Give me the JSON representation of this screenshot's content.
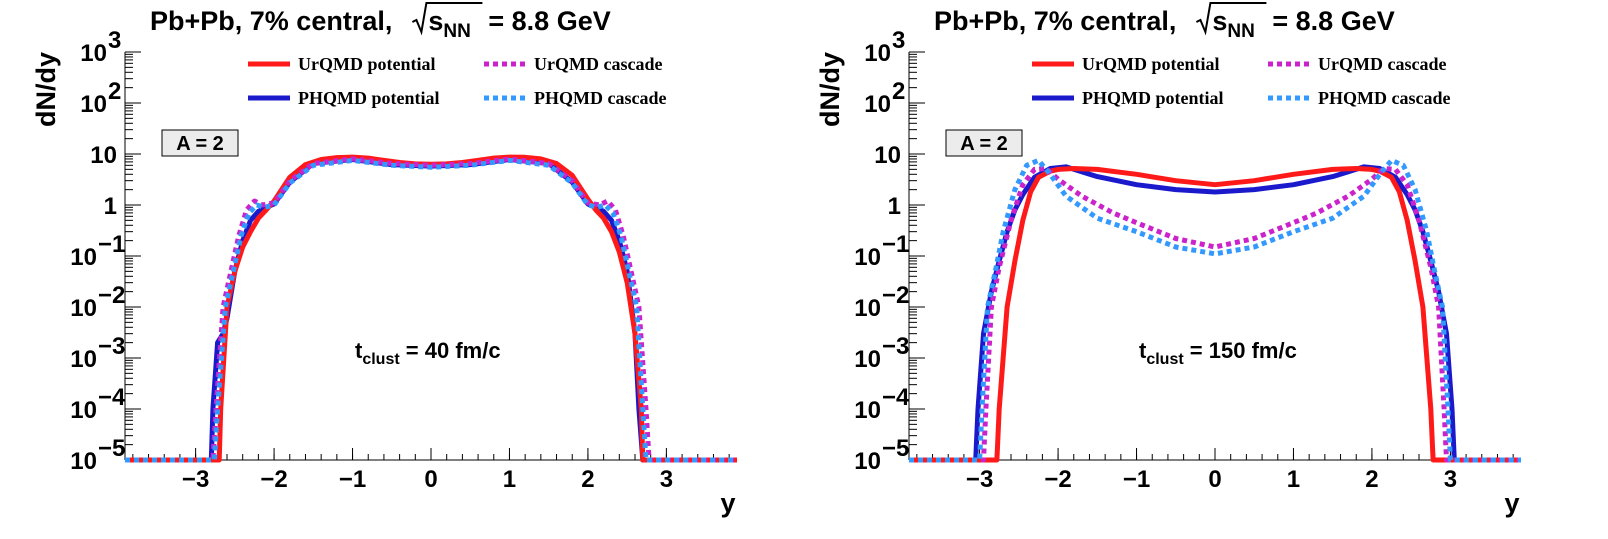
{
  "colors": {
    "urqmd_potential": "#ff1a1a",
    "urqmd_cascade": "#cc22cc",
    "phqmd_potential": "#1a1acc",
    "phqmd_cascade": "#3399ff"
  },
  "chart_data": [
    {
      "type": "line",
      "title": {
        "prefix": "Pb+Pb, 7% central,",
        "sqrt": "s",
        "sub": "NN",
        "suffix": "= 8.8 GeV"
      },
      "xlabel": "y",
      "ylabel": "dN/dy",
      "xlim": [
        -3.9,
        3.9
      ],
      "ylim": [
        1e-05,
        1000
      ],
      "yscale": "log",
      "xticks": [
        {
          "v": -3,
          "label": "−3"
        },
        {
          "v": -2,
          "label": "−2"
        },
        {
          "v": -1,
          "label": "−1"
        },
        {
          "v": 0,
          "label": "0"
        },
        {
          "v": 1,
          "label": "1"
        },
        {
          "v": 2,
          "label": "2"
        },
        {
          "v": 3,
          "label": "3"
        }
      ],
      "yticks": [
        {
          "v": 1000,
          "base": "10",
          "exp": "3"
        },
        {
          "v": 100,
          "base": "10",
          "exp": "2"
        },
        {
          "v": 10,
          "base": "10",
          "exp": ""
        },
        {
          "v": 1,
          "base": "1",
          "exp": ""
        },
        {
          "v": 0.1,
          "base": "10",
          "exp": "−1"
        },
        {
          "v": 0.01,
          "base": "10",
          "exp": "−2"
        },
        {
          "v": 0.001,
          "base": "10",
          "exp": "−3"
        },
        {
          "v": 0.0001,
          "base": "10",
          "exp": "−4"
        },
        {
          "v": 1e-05,
          "base": "10",
          "exp": "−5"
        }
      ],
      "box_label": "A = 2",
      "annotation": {
        "t": "t",
        "sub": "clust",
        "rest": " = 40 fm/c"
      },
      "series": [
        {
          "name": "UrQMD potential",
          "style": "solid",
          "color": "urqmd_potential",
          "x": [
            -3.9,
            -2.7,
            -2.68,
            -2.6,
            -2.5,
            -2.4,
            -2.3,
            -2.2,
            -2.1,
            -2.0,
            -1.8,
            -1.6,
            -1.4,
            -1.2,
            -1.0,
            -0.8,
            -0.6,
            -0.4,
            -0.2,
            0,
            0.2,
            0.4,
            0.6,
            0.8,
            1.0,
            1.2,
            1.4,
            1.6,
            1.8,
            2.0,
            2.1,
            2.2,
            2.3,
            2.4,
            2.5,
            2.6,
            2.68,
            2.7,
            3.9
          ],
          "y": [
            1e-05,
            1e-05,
            0.0001,
            0.01,
            0.05,
            0.15,
            0.3,
            0.55,
            0.8,
            1.2,
            3.5,
            6.2,
            7.8,
            8.5,
            8.7,
            8.3,
            7.5,
            6.8,
            6.4,
            6.3,
            6.4,
            6.8,
            7.5,
            8.3,
            8.7,
            8.6,
            8.0,
            6.5,
            3.8,
            1.3,
            0.8,
            0.55,
            0.3,
            0.12,
            0.03,
            0.003,
            0.0001,
            1e-05,
            1e-05
          ]
        },
        {
          "name": "UrQMD cascade",
          "style": "dotted",
          "color": "urqmd_cascade",
          "x": [
            -3.9,
            -2.78,
            -2.74,
            -2.65,
            -2.55,
            -2.45,
            -2.35,
            -2.25,
            -2.15,
            -2.0,
            -1.8,
            -1.5,
            -1.0,
            -0.5,
            0,
            0.5,
            1.0,
            1.5,
            1.8,
            2.0,
            2.15,
            2.25,
            2.35,
            2.45,
            2.55,
            2.65,
            2.74,
            2.78,
            3.9
          ],
          "y": [
            1e-05,
            1e-05,
            0.0001,
            0.01,
            0.05,
            0.25,
            0.8,
            1.2,
            1.0,
            1.1,
            3.0,
            6.5,
            8.0,
            6.5,
            6.0,
            6.5,
            8.0,
            6.5,
            3.0,
            1.1,
            1.0,
            1.2,
            0.8,
            0.25,
            0.05,
            0.01,
            0.0001,
            1e-05,
            1e-05
          ]
        },
        {
          "name": "PHQMD potential",
          "style": "solid",
          "color": "phqmd_potential",
          "x": [
            -3.9,
            -2.8,
            -2.78,
            -2.72,
            -2.65,
            -2.6,
            -2.5,
            -2.4,
            -2.3,
            -2.2,
            -2.1,
            -2.0,
            -1.8,
            -1.5,
            -1.0,
            -0.5,
            0,
            0.5,
            1.0,
            1.5,
            1.8,
            2.0,
            2.1,
            2.2,
            2.3,
            2.4,
            2.5,
            2.6,
            2.65,
            2.7,
            3.9
          ],
          "y": [
            1e-05,
            1e-05,
            0.0001,
            0.002,
            0.003,
            0.006,
            0.05,
            0.2,
            0.5,
            0.75,
            0.9,
            1.05,
            2.8,
            6.5,
            7.8,
            6.2,
            5.8,
            6.2,
            7.8,
            6.5,
            2.8,
            1.05,
            0.9,
            0.75,
            0.5,
            0.2,
            0.05,
            0.003,
            0.0001,
            1e-05,
            1e-05
          ]
        },
        {
          "name": "PHQMD cascade",
          "style": "dotted",
          "color": "phqmd_cascade",
          "x": [
            -3.9,
            -2.76,
            -2.72,
            -2.62,
            -2.52,
            -2.42,
            -2.32,
            -2.22,
            -2.12,
            -2.0,
            -1.8,
            -1.5,
            -1.0,
            -0.5,
            0,
            0.5,
            1.0,
            1.5,
            1.8,
            2.0,
            2.12,
            2.22,
            2.32,
            2.42,
            2.52,
            2.62,
            2.7,
            2.74,
            3.9
          ],
          "y": [
            1e-05,
            1e-05,
            0.0001,
            0.01,
            0.05,
            0.25,
            0.7,
            1.0,
            0.9,
            1.0,
            2.7,
            6.0,
            7.5,
            6.0,
            5.5,
            6.0,
            7.5,
            6.0,
            2.7,
            1.0,
            0.9,
            1.0,
            0.7,
            0.25,
            0.05,
            0.01,
            0.0001,
            1e-05,
            1e-05
          ]
        }
      ]
    },
    {
      "type": "line",
      "title": {
        "prefix": "Pb+Pb, 7% central,",
        "sqrt": "s",
        "sub": "NN",
        "suffix": "= 8.8 GeV"
      },
      "xlabel": "y",
      "ylabel": "dN/dy",
      "xlim": [
        -3.9,
        3.9
      ],
      "ylim": [
        1e-05,
        1000
      ],
      "yscale": "log",
      "xticks": [
        {
          "v": -3,
          "label": "−3"
        },
        {
          "v": -2,
          "label": "−2"
        },
        {
          "v": -1,
          "label": "−1"
        },
        {
          "v": 0,
          "label": "0"
        },
        {
          "v": 1,
          "label": "1"
        },
        {
          "v": 2,
          "label": "2"
        },
        {
          "v": 3,
          "label": "3"
        }
      ],
      "yticks": [
        {
          "v": 1000,
          "base": "10",
          "exp": "3"
        },
        {
          "v": 100,
          "base": "10",
          "exp": "2"
        },
        {
          "v": 10,
          "base": "10",
          "exp": ""
        },
        {
          "v": 1,
          "base": "1",
          "exp": ""
        },
        {
          "v": 0.1,
          "base": "10",
          "exp": "−1"
        },
        {
          "v": 0.01,
          "base": "10",
          "exp": "−2"
        },
        {
          "v": 0.001,
          "base": "10",
          "exp": "−3"
        },
        {
          "v": 0.0001,
          "base": "10",
          "exp": "−4"
        },
        {
          "v": 1e-05,
          "base": "10",
          "exp": "−5"
        }
      ],
      "box_label": "A = 2",
      "annotation": {
        "t": "t",
        "sub": "clust",
        "rest": " = 150 fm/c"
      },
      "series": [
        {
          "name": "UrQMD potential",
          "style": "solid",
          "color": "urqmd_potential",
          "x": [
            -3.9,
            -2.78,
            -2.75,
            -2.65,
            -2.55,
            -2.45,
            -2.35,
            -2.25,
            -2.1,
            -2.0,
            -1.8,
            -1.5,
            -1.0,
            -0.5,
            0,
            0.5,
            1.0,
            1.5,
            1.8,
            2.0,
            2.1,
            2.25,
            2.35,
            2.45,
            2.55,
            2.65,
            2.75,
            2.78,
            3.9
          ],
          "y": [
            1e-05,
            1e-05,
            0.0001,
            0.01,
            0.08,
            0.5,
            1.8,
            3.5,
            4.6,
            5.0,
            5.2,
            5.0,
            4.0,
            3.0,
            2.5,
            3.0,
            4.0,
            5.0,
            5.2,
            5.0,
            4.6,
            3.5,
            1.8,
            0.5,
            0.08,
            0.01,
            0.0001,
            1e-05,
            1e-05
          ]
        },
        {
          "name": "UrQMD cascade",
          "style": "dotted",
          "color": "urqmd_cascade",
          "x": [
            -3.9,
            -2.95,
            -2.92,
            -2.85,
            -2.75,
            -2.6,
            -2.45,
            -2.3,
            -2.15,
            -2.0,
            -1.7,
            -1.3,
            -1.0,
            -0.5,
            0,
            0.5,
            1.0,
            1.3,
            1.7,
            2.0,
            2.15,
            2.3,
            2.45,
            2.6,
            2.75,
            2.85,
            2.92,
            2.95,
            3.9
          ],
          "y": [
            1e-05,
            1e-05,
            0.0001,
            0.01,
            0.06,
            0.5,
            2.5,
            5.0,
            5.2,
            3.2,
            1.5,
            0.7,
            0.45,
            0.22,
            0.15,
            0.22,
            0.45,
            0.7,
            1.5,
            3.2,
            5.2,
            5.0,
            2.5,
            0.5,
            0.06,
            0.01,
            0.0001,
            1e-05,
            1e-05
          ]
        },
        {
          "name": "PHQMD potential",
          "style": "solid",
          "color": "phqmd_potential",
          "x": [
            -3.9,
            -3.05,
            -3.02,
            -2.95,
            -2.85,
            -2.75,
            -2.65,
            -2.55,
            -2.45,
            -2.3,
            -2.1,
            -1.9,
            -1.7,
            -1.5,
            -1.0,
            -0.5,
            0,
            0.5,
            1.0,
            1.5,
            1.7,
            1.9,
            2.1,
            2.3,
            2.45,
            2.55,
            2.65,
            2.75,
            2.85,
            2.95,
            3.02,
            3.05,
            3.9
          ],
          "y": [
            1e-05,
            1e-05,
            0.0001,
            0.003,
            0.02,
            0.08,
            0.3,
            0.8,
            1.6,
            3.5,
            5.2,
            5.6,
            4.5,
            3.6,
            2.5,
            2.0,
            1.8,
            2.0,
            2.5,
            3.6,
            4.5,
            5.6,
            5.2,
            3.5,
            1.6,
            0.8,
            0.3,
            0.08,
            0.02,
            0.003,
            0.0001,
            1e-05,
            1e-05
          ]
        },
        {
          "name": "PHQMD cascade",
          "style": "dotted",
          "color": "phqmd_cascade",
          "x": [
            -3.9,
            -3.0,
            -2.97,
            -2.9,
            -2.8,
            -2.7,
            -2.55,
            -2.4,
            -2.25,
            -2.1,
            -1.9,
            -1.5,
            -1.0,
            -0.5,
            0,
            0.5,
            1.0,
            1.5,
            1.9,
            2.1,
            2.25,
            2.4,
            2.55,
            2.7,
            2.8,
            2.9,
            2.97,
            3.0,
            3.9
          ],
          "y": [
            1e-05,
            1e-05,
            0.0001,
            0.01,
            0.05,
            0.3,
            2.0,
            6.0,
            7.5,
            4.0,
            1.5,
            0.55,
            0.3,
            0.15,
            0.11,
            0.15,
            0.3,
            0.55,
            1.5,
            4.0,
            7.5,
            6.0,
            2.0,
            0.3,
            0.05,
            0.01,
            0.0001,
            1e-05,
            1e-05
          ]
        }
      ]
    }
  ]
}
